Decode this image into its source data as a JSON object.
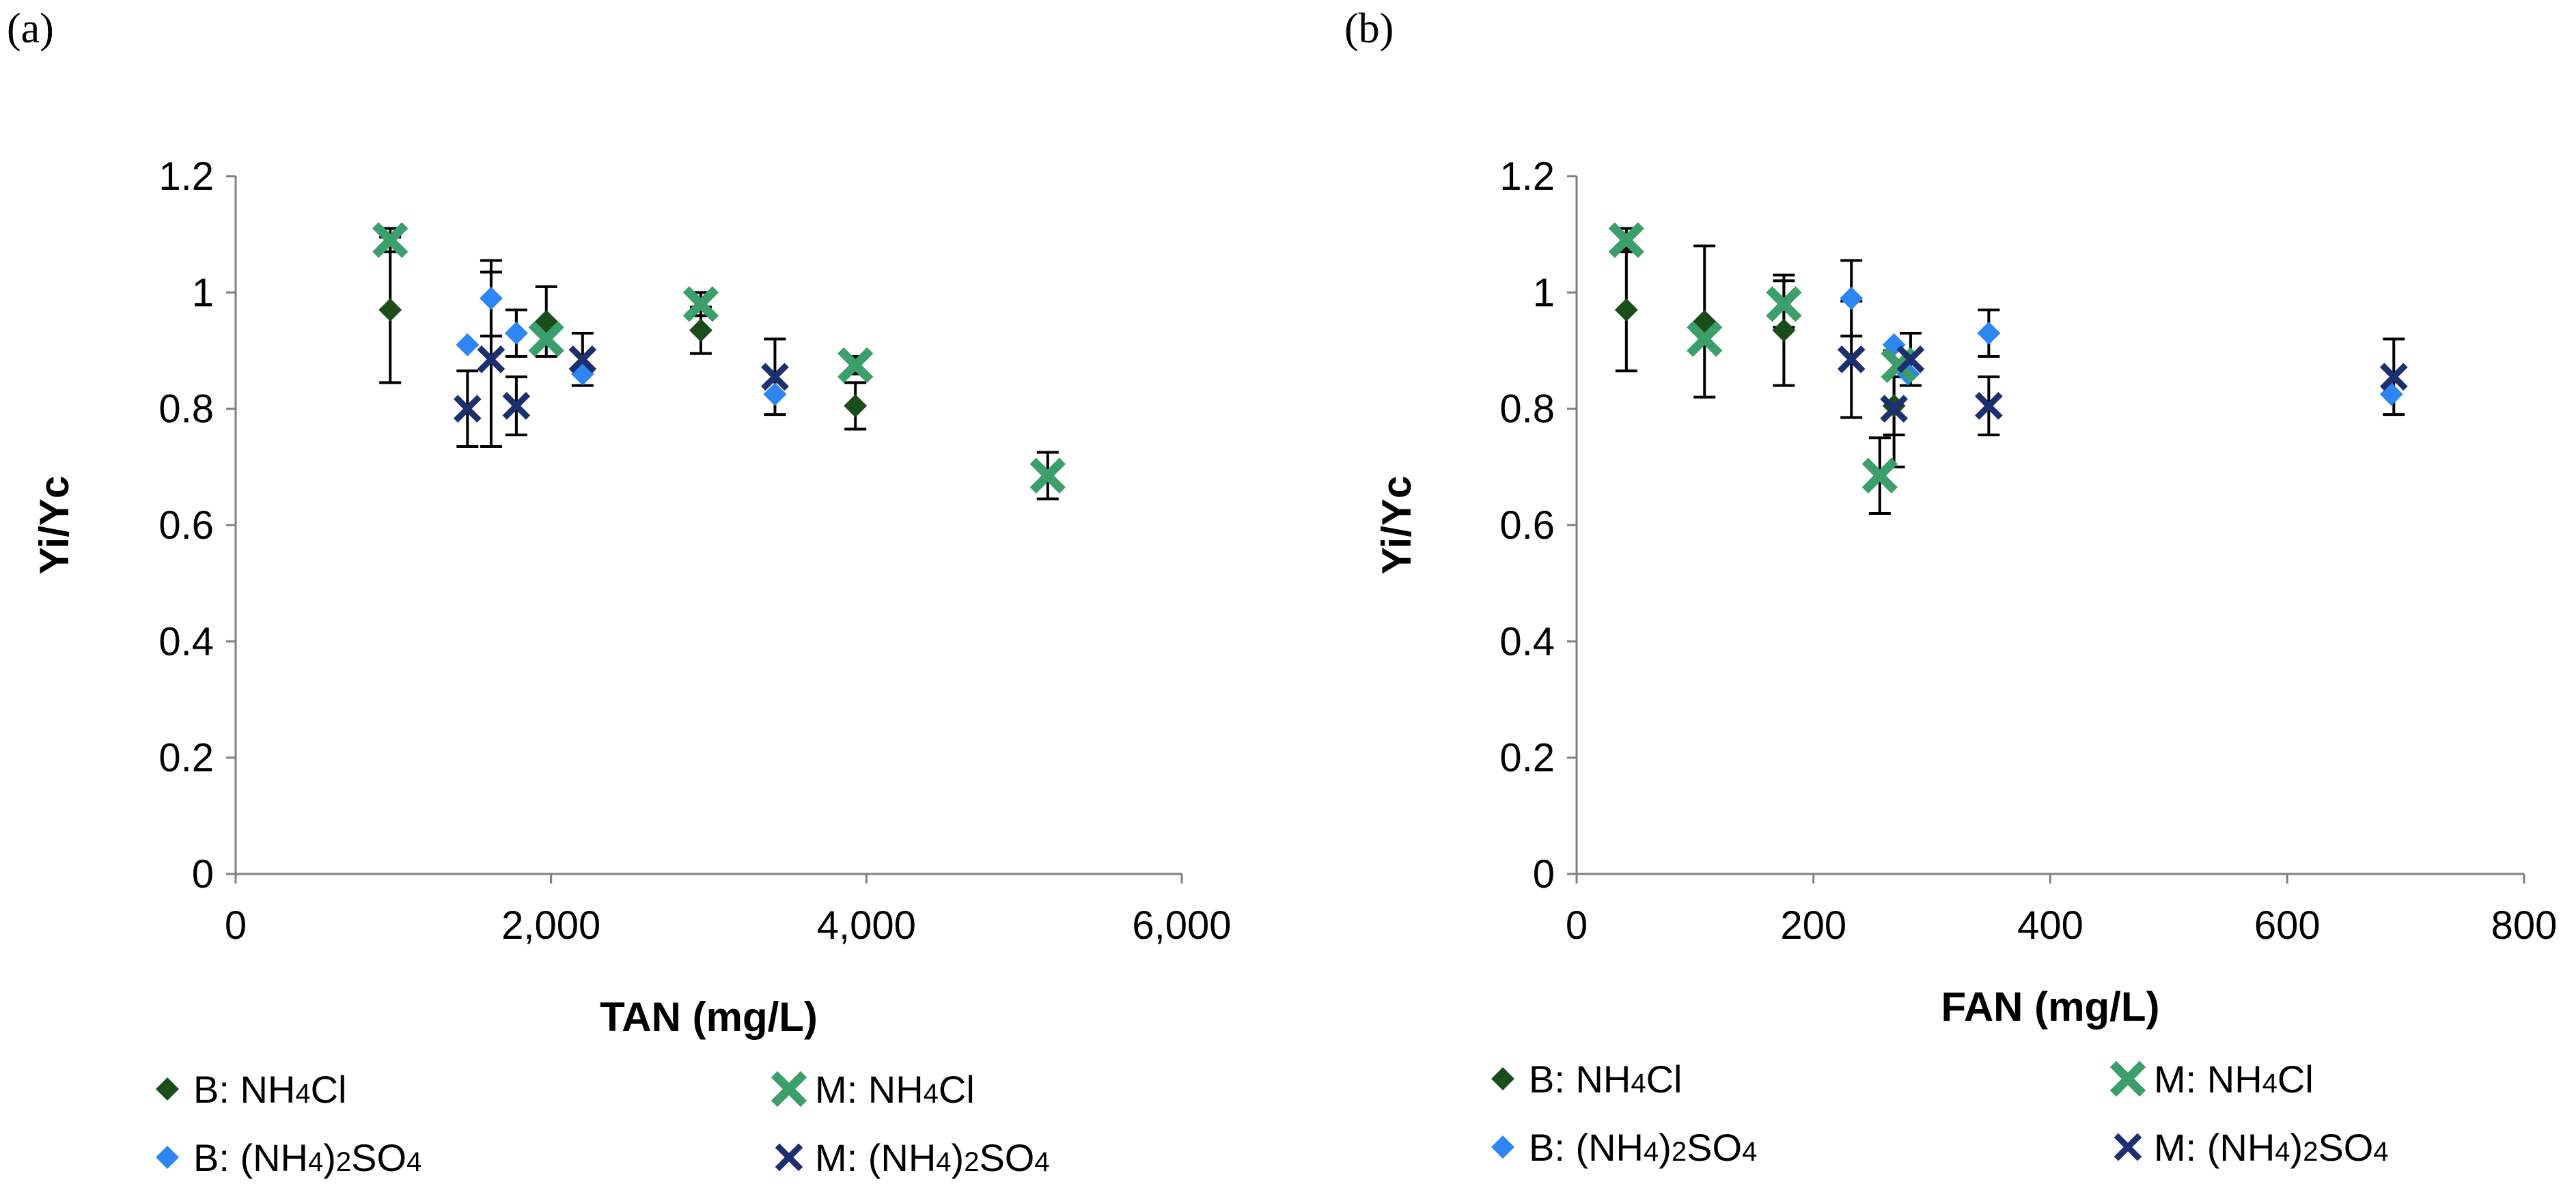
{
  "chart_data": [
    {
      "panel": "(a)",
      "type": "scatter",
      "xlabel": "TAN (mg/L)",
      "ylabel": "Yi/Yc",
      "xlim": [
        0,
        6000
      ],
      "ylim": [
        0,
        1.2
      ],
      "xticks": [
        0,
        2000,
        4000,
        6000
      ],
      "xtick_labels": [
        "0",
        "2,000",
        "4,000",
        "6,000"
      ],
      "yticks": [
        0,
        0.2,
        0.4,
        0.6,
        0.8,
        1.0,
        1.2
      ],
      "ytick_labels": [
        "0",
        "0.2",
        "0.4",
        "0.6",
        "0.8",
        "1",
        "1.2"
      ],
      "grid": false,
      "series": [
        {
          "name": "B: NH4Cl",
          "legend": {
            "pre": "B: NH",
            "sub": "4",
            "post": "Cl"
          },
          "marker": "diamond",
          "color": "#1b4d1b",
          "points": [
            {
              "x": 980,
              "y": 0.97,
              "err": 0.125
            },
            {
              "x": 1970,
              "y": 0.95,
              "err": 0.06
            },
            {
              "x": 2950,
              "y": 0.935,
              "err": 0.04
            },
            {
              "x": 3930,
              "y": 0.805,
              "err": 0.04
            }
          ]
        },
        {
          "name": "B: (NH4)2SO4",
          "legend": {
            "pre": "B: (NH",
            "sub": "4",
            "mid": ")",
            "sub2": "2",
            "post": "SO",
            "sub3": "4"
          },
          "marker": "diamond",
          "color": "#2e86f5",
          "points": [
            {
              "x": 1470,
              "y": 0.91,
              "err": 0.0
            },
            {
              "x": 1620,
              "y": 0.99,
              "err": 0.065
            },
            {
              "x": 1780,
              "y": 0.93,
              "err": 0.04
            },
            {
              "x": 2200,
              "y": 0.86,
              "err": 0.0
            },
            {
              "x": 3420,
              "y": 0.825,
              "err": 0.0
            }
          ]
        },
        {
          "name": "M: NH4Cl",
          "legend": {
            "pre": "M: NH",
            "sub": "4",
            "post": "Cl"
          },
          "marker": "x-thick",
          "color": "#3c9e6b",
          "points": [
            {
              "x": 980,
              "y": 1.09,
              "err": 0.02
            },
            {
              "x": 1970,
              "y": 0.92,
              "err": 0.0
            },
            {
              "x": 2950,
              "y": 0.98,
              "err": 0.02
            },
            {
              "x": 3930,
              "y": 0.875,
              "err": 0.015
            },
            {
              "x": 5150,
              "y": 0.685,
              "err": 0.04
            }
          ]
        },
        {
          "name": "M: (NH4)2SO4",
          "legend": {
            "pre": "M: (NH",
            "sub": "4",
            "mid": ")",
            "sub2": "2",
            "post": "SO",
            "sub3": "4"
          },
          "marker": "x-thin",
          "color": "#1c2f6e",
          "points": [
            {
              "x": 1470,
              "y": 0.8,
              "err": 0.065
            },
            {
              "x": 1620,
              "y": 0.885,
              "err": 0.15
            },
            {
              "x": 1780,
              "y": 0.805,
              "err": 0.05
            },
            {
              "x": 2200,
              "y": 0.885,
              "err": 0.045
            },
            {
              "x": 3420,
              "y": 0.855,
              "err": 0.065
            }
          ]
        }
      ]
    },
    {
      "panel": "(b)",
      "type": "scatter",
      "xlabel": "FAN (mg/L)",
      "ylabel": "Yi/Yc",
      "xlim": [
        0,
        800
      ],
      "ylim": [
        0,
        1.2
      ],
      "xticks": [
        0,
        200,
        400,
        600,
        800
      ],
      "xtick_labels": [
        "0",
        "200",
        "400",
        "600",
        "800"
      ],
      "yticks": [
        0,
        0.2,
        0.4,
        0.6,
        0.8,
        1.0,
        1.2
      ],
      "ytick_labels": [
        "0",
        "0.2",
        "0.4",
        "0.6",
        "0.8",
        "1",
        "1.2"
      ],
      "grid": false,
      "series": [
        {
          "name": "B: NH4Cl",
          "legend": {
            "pre": "B: NH",
            "sub": "4",
            "post": "Cl"
          },
          "marker": "diamond",
          "color": "#1b4d1b",
          "points": [
            {
              "x": 42,
              "y": 0.97,
              "err": 0.105
            },
            {
              "x": 108,
              "y": 0.95,
              "err": 0.13
            },
            {
              "x": 175,
              "y": 0.935,
              "err": 0.095
            },
            {
              "x": 268,
              "y": 0.805,
              "err": 0.05
            }
          ]
        },
        {
          "name": "B: (NH4)2SO4",
          "legend": {
            "pre": "B: (NH",
            "sub": "4",
            "mid": ")",
            "sub2": "2",
            "post": "SO",
            "sub3": "4"
          },
          "marker": "diamond",
          "color": "#2e86f5",
          "points": [
            {
              "x": 232,
              "y": 0.99,
              "err": 0.065
            },
            {
              "x": 268,
              "y": 0.91,
              "err": 0.0
            },
            {
              "x": 280,
              "y": 0.86,
              "err": 0.0
            },
            {
              "x": 348,
              "y": 0.93,
              "err": 0.04
            },
            {
              "x": 688,
              "y": 0.825,
              "err": 0.0
            }
          ]
        },
        {
          "name": "M: NH4Cl",
          "legend": {
            "pre": "M: NH",
            "sub": "4",
            "post": "Cl"
          },
          "marker": "x-thick",
          "color": "#3c9e6b",
          "points": [
            {
              "x": 42,
              "y": 1.09,
              "err": 0.02
            },
            {
              "x": 108,
              "y": 0.92,
              "err": 0.0
            },
            {
              "x": 175,
              "y": 0.98,
              "err": 0.04
            },
            {
              "x": 256,
              "y": 0.685,
              "err": 0.065
            },
            {
              "x": 272,
              "y": 0.875,
              "err": 0.0
            }
          ]
        },
        {
          "name": "M: (NH4)2SO4",
          "legend": {
            "pre": "M: (NH",
            "sub": "4",
            "mid": ")",
            "sub2": "2",
            "post": "SO",
            "sub3": "4"
          },
          "marker": "x-thin",
          "color": "#1c2f6e",
          "points": [
            {
              "x": 232,
              "y": 0.885,
              "err": 0.1
            },
            {
              "x": 268,
              "y": 0.8,
              "err": 0.1
            },
            {
              "x": 282,
              "y": 0.885,
              "err": 0.045
            },
            {
              "x": 348,
              "y": 0.805,
              "err": 0.05
            },
            {
              "x": 690,
              "y": 0.855,
              "err": 0.065
            }
          ]
        }
      ]
    }
  ]
}
